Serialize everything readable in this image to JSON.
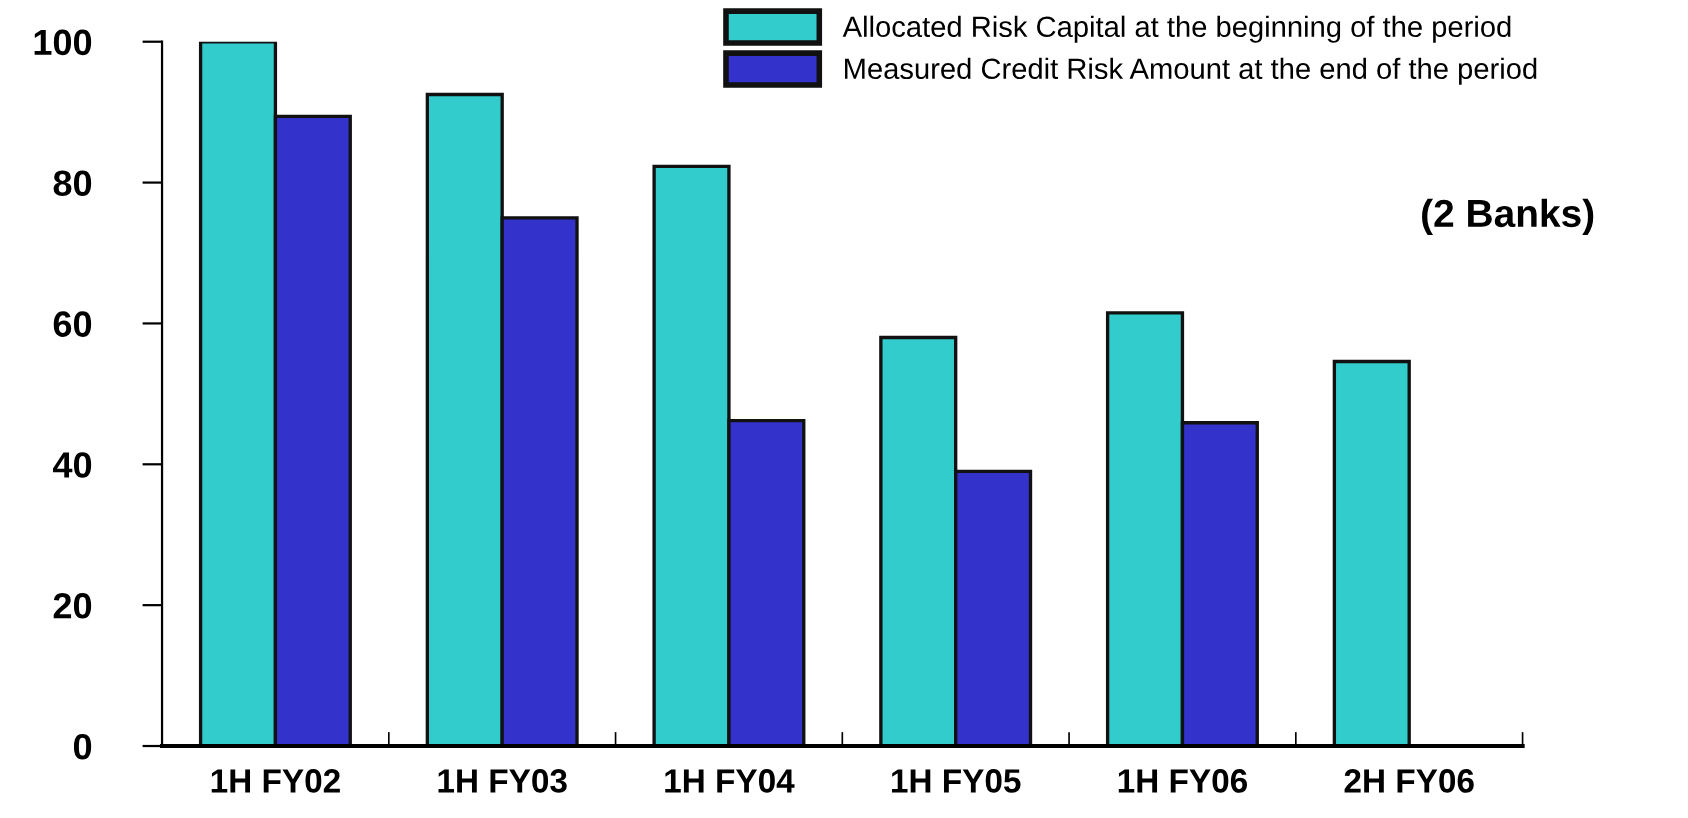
{
  "chart_data": {
    "type": "bar",
    "categories": [
      "1H FY02",
      "1H FY03",
      "1H FY04",
      "1H FY05",
      "1H FY06",
      "2H FY06"
    ],
    "series": [
      {
        "name": "Allocated Risk Capital at the beginning of the period",
        "color": "#33cccc",
        "values": [
          100,
          92.5,
          82.3,
          58.0,
          61.5,
          54.6
        ]
      },
      {
        "name": "Measured Credit Risk Amount at the end of the period",
        "color": "#3333cc",
        "values": [
          89.4,
          75.0,
          46.2,
          39.0,
          45.9,
          null
        ]
      }
    ],
    "ylim": [
      0,
      100
    ],
    "yticks": [
      0,
      20,
      40,
      60,
      80,
      100
    ],
    "grid": false,
    "legend": "top right",
    "annotations": [
      "(2 Banks)"
    ]
  }
}
